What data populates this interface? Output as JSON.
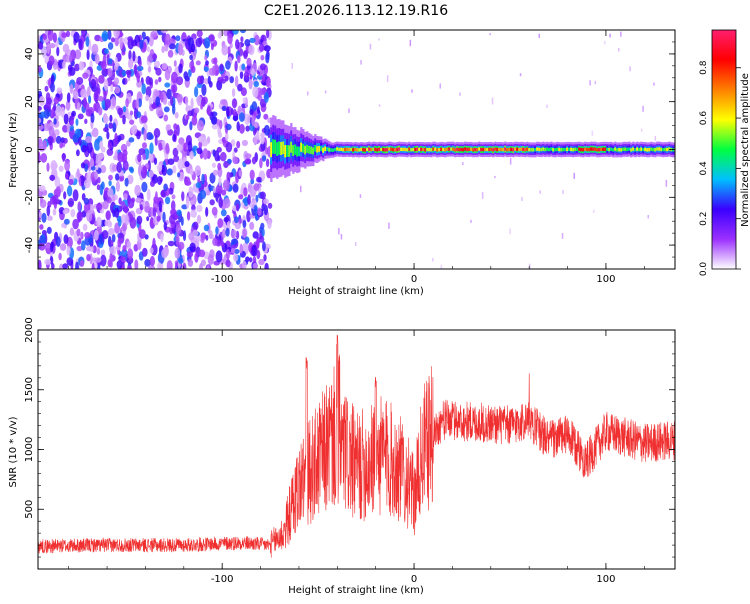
{
  "title": "C2E1.2026.113.12.19.R16",
  "chart_data": [
    {
      "type": "heatmap",
      "xlabel": "Height of straight line (km)",
      "ylabel": "Frequency (Hz)",
      "xlim": [
        -196,
        136
      ],
      "ylim": [
        -50,
        50
      ],
      "x_ticks": [
        -100,
        0,
        100
      ],
      "y_ticks": [
        -40,
        -20,
        0,
        20,
        40
      ],
      "noise_region_x": [
        -196,
        -75
      ],
      "signal_track": {
        "start_x": -75,
        "end_x": 136,
        "center_frequency": 0,
        "onset_spread_hz": 4,
        "peak_x_range": [
          -40,
          60
        ]
      },
      "colorbar": {
        "label": "Normalized spectral amplitude",
        "range": [
          0.0,
          0.95
        ],
        "ticks": [
          "0.0",
          "0.2",
          "0.4",
          "0.6",
          "0.8"
        ],
        "tick_values": [
          0.0,
          0.2,
          0.4,
          0.6,
          0.8
        ],
        "colors": [
          "#ffffff",
          "#9b30ff",
          "#3a00ff",
          "#00c0ff",
          "#00ff40",
          "#ffff00",
          "#ff8000",
          "#ff0000",
          "#ff1e6e"
        ]
      },
      "grid": false
    },
    {
      "type": "line",
      "xlabel": "Height of straight line (km)",
      "ylabel": "SNR (10 * v/v)",
      "xlim": [
        -196,
        136
      ],
      "ylim": [
        0,
        2000
      ],
      "x_ticks": [
        -100,
        0,
        100
      ],
      "y_ticks": [
        500,
        1000,
        1500,
        2000
      ],
      "color": "#f03030",
      "profile": [
        {
          "x": -196,
          "y": 190
        },
        {
          "x": -160,
          "y": 200
        },
        {
          "x": -120,
          "y": 200
        },
        {
          "x": -90,
          "y": 220
        },
        {
          "x": -75,
          "y": 200
        },
        {
          "x": -68,
          "y": 300
        },
        {
          "x": -60,
          "y": 700
        },
        {
          "x": -50,
          "y": 900
        },
        {
          "x": -42,
          "y": 1100
        },
        {
          "x": -30,
          "y": 850
        },
        {
          "x": -15,
          "y": 950
        },
        {
          "x": -5,
          "y": 800
        },
        {
          "x": 0,
          "y": 600
        },
        {
          "x": 5,
          "y": 1000
        },
        {
          "x": 15,
          "y": 1250
        },
        {
          "x": 30,
          "y": 1230
        },
        {
          "x": 50,
          "y": 1200
        },
        {
          "x": 60,
          "y": 1250
        },
        {
          "x": 70,
          "y": 1080
        },
        {
          "x": 80,
          "y": 1120
        },
        {
          "x": 90,
          "y": 900
        },
        {
          "x": 100,
          "y": 1150
        },
        {
          "x": 120,
          "y": 1050
        },
        {
          "x": 136,
          "y": 1080
        }
      ],
      "spikes": [
        {
          "x": -56,
          "y": 1780
        },
        {
          "x": -40,
          "y": 2000
        },
        {
          "x": -39,
          "y": 1830
        },
        {
          "x": -20,
          "y": 1620
        },
        {
          "x": 60,
          "y": 1670
        }
      ],
      "grid": false
    }
  ]
}
